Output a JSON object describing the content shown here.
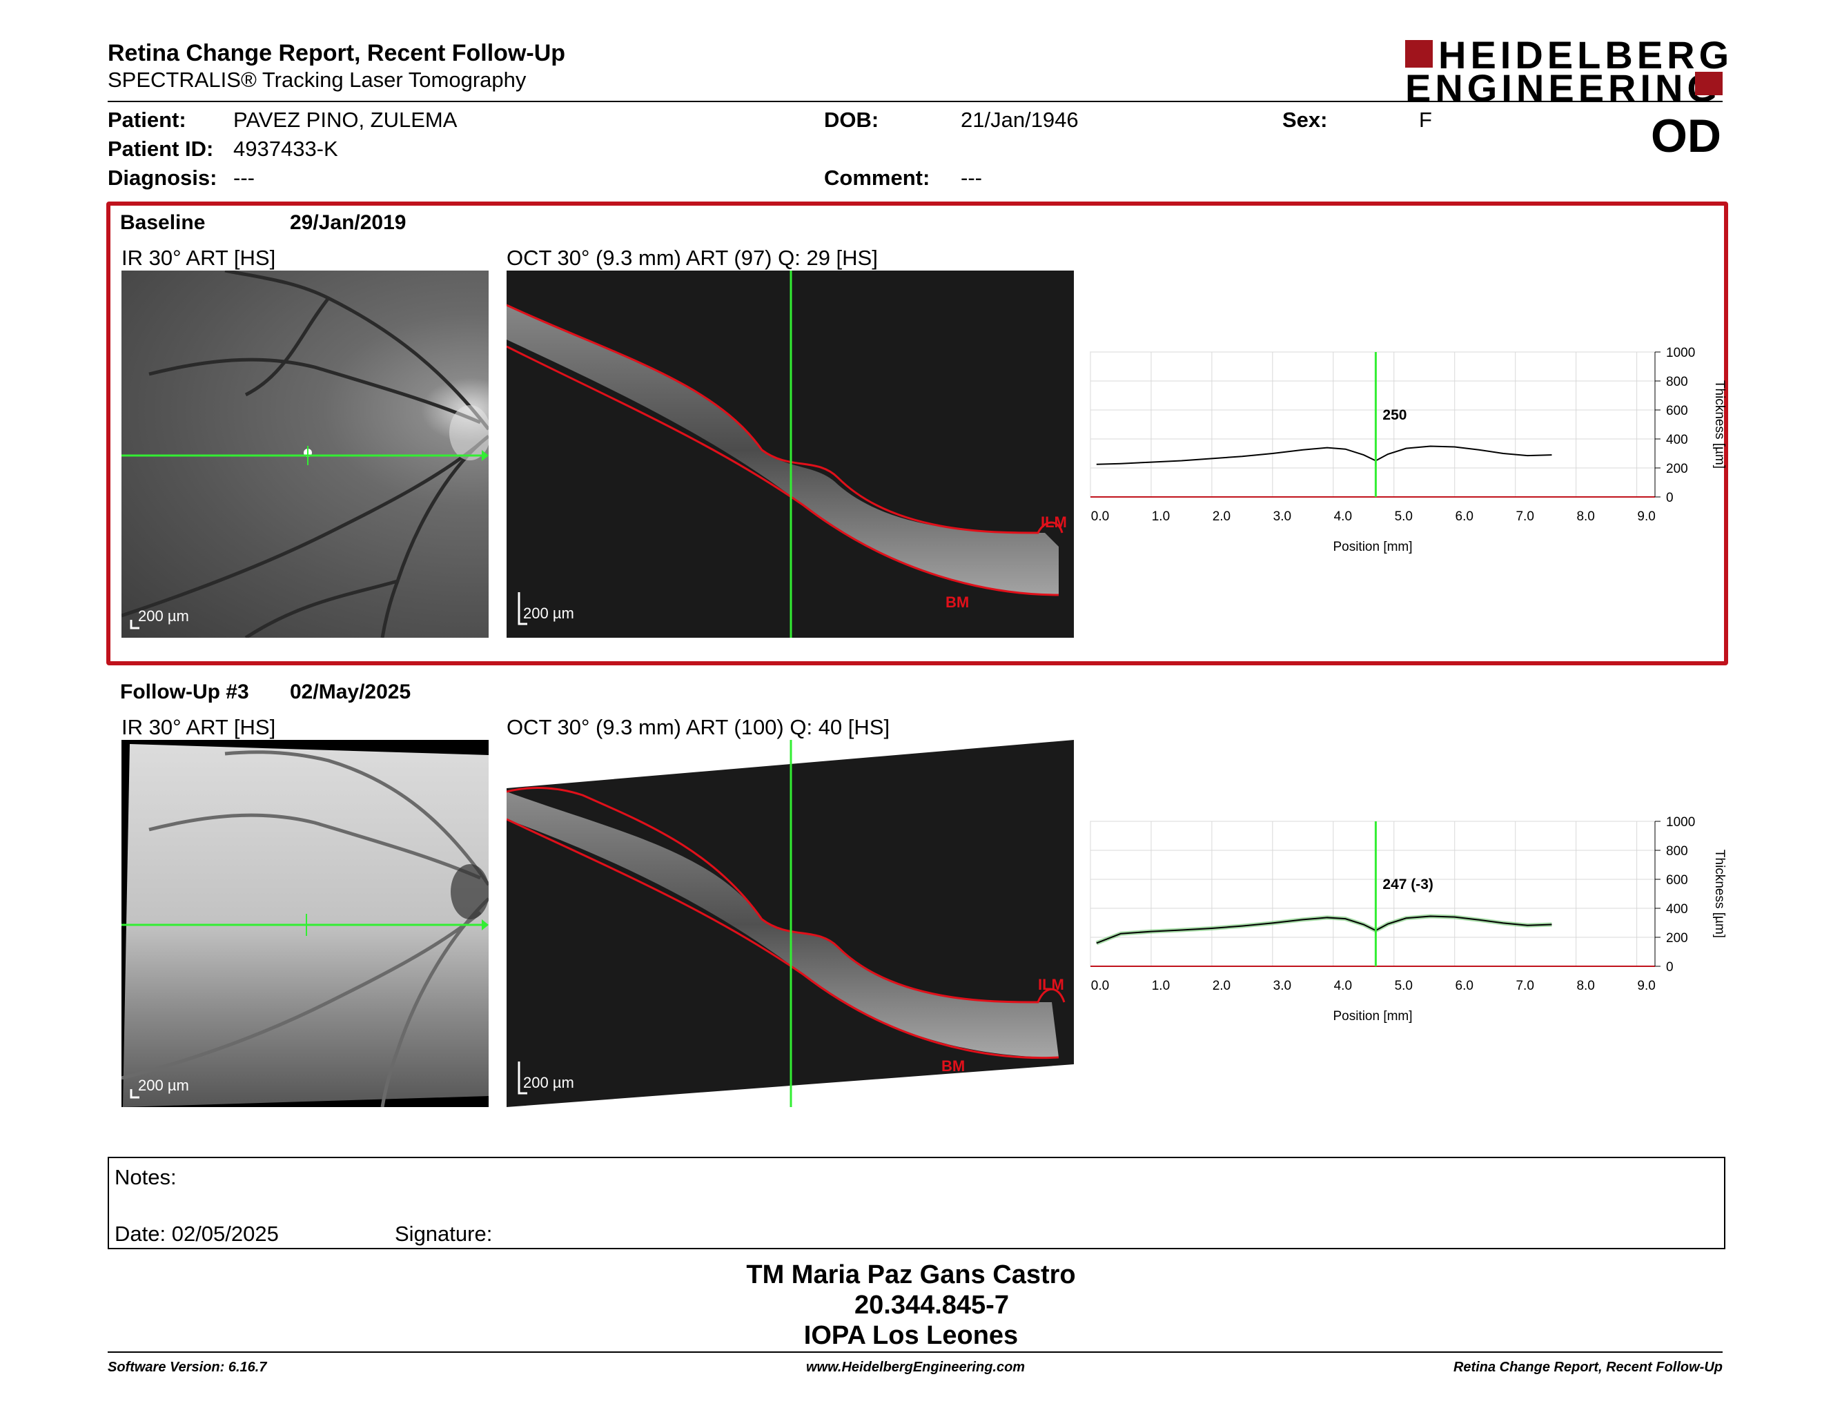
{
  "header": {
    "title": "Retina Change Report, Recent Follow-Up",
    "subtitle": "SPECTRALIS® Tracking Laser Tomography",
    "logo_line1": "HEIDELBERG",
    "logo_line2": "ENGINEERING"
  },
  "patient": {
    "patient_label": "Patient:",
    "patient_value": "PAVEZ PINO, ZULEMA",
    "id_label": "Patient ID:",
    "id_value": "4937433-K",
    "diagnosis_label": "Diagnosis:",
    "diagnosis_value": "---",
    "dob_label": "DOB:",
    "dob_value": "21/Jan/1946",
    "comment_label": "Comment:",
    "comment_value": "---",
    "sex_label": "Sex:",
    "sex_value": "F",
    "eye": "OD"
  },
  "baseline": {
    "label": "Baseline",
    "date": "29/Jan/2019",
    "ir_label": "IR 30° ART [HS]",
    "oct_label": "OCT 30° (9.3 mm) ART (97) Q: 29 [HS]",
    "scale": "200 µm",
    "ilm": "ILM",
    "bm": "BM"
  },
  "followup": {
    "label": "Follow-Up #3",
    "date": "02/May/2025",
    "ir_label": "IR 30° ART [HS]",
    "oct_label": "OCT 30° (9.3 mm) ART (100) Q: 40 [HS]",
    "scale": "200 µm",
    "ilm": "ILM",
    "bm": "BM"
  },
  "chart_data": [
    {
      "type": "line",
      "xlabel": "Position [mm]",
      "ylabel": "Thickness [µm]",
      "xlim": [
        0,
        9.3
      ],
      "ylim": [
        0,
        1000
      ],
      "xticks": [
        "0.0",
        "1.0",
        "2.0",
        "3.0",
        "4.0",
        "5.0",
        "6.0",
        "7.0",
        "8.0",
        "9.0"
      ],
      "yticks": [
        "0",
        "200",
        "400",
        "600",
        "800",
        "1000"
      ],
      "cursor_x": 4.7,
      "cursor_label": "250",
      "series": [
        {
          "x": [
            0.1,
            0.5,
            1.0,
            1.5,
            2.0,
            2.5,
            3.0,
            3.5,
            3.9,
            4.2,
            4.5,
            4.7,
            4.9,
            5.2,
            5.6,
            6.0,
            6.4,
            6.8,
            7.2,
            7.6
          ],
          "values": [
            225,
            230,
            240,
            250,
            265,
            280,
            300,
            325,
            340,
            330,
            290,
            250,
            295,
            335,
            350,
            345,
            325,
            300,
            285,
            290
          ]
        }
      ]
    },
    {
      "type": "line",
      "xlabel": "Position [mm]",
      "ylabel": "Thickness [µm]",
      "xlim": [
        0,
        9.3
      ],
      "ylim": [
        0,
        1000
      ],
      "xticks": [
        "0.0",
        "1.0",
        "2.0",
        "3.0",
        "4.0",
        "5.0",
        "6.0",
        "7.0",
        "8.0",
        "9.0"
      ],
      "yticks": [
        "0",
        "200",
        "400",
        "600",
        "800",
        "1000"
      ],
      "cursor_x": 4.7,
      "cursor_label": "247 (-3)",
      "series": [
        {
          "x": [
            0.1,
            0.5,
            1.0,
            1.5,
            2.0,
            2.5,
            3.0,
            3.5,
            3.9,
            4.2,
            4.5,
            4.7,
            4.9,
            5.2,
            5.6,
            6.0,
            6.4,
            6.8,
            7.2,
            7.6
          ],
          "values": [
            160,
            225,
            240,
            250,
            262,
            278,
            298,
            322,
            336,
            328,
            288,
            247,
            292,
            332,
            345,
            340,
            320,
            298,
            282,
            288
          ]
        }
      ]
    }
  ],
  "notes": {
    "notes_label": "Notes:",
    "date_label": "Date: 02/05/2025",
    "signature_label": "Signature:"
  },
  "signature": {
    "name": "TM Maria Paz Gans Castro",
    "rut": "20.344.845-7",
    "clinic": "IOPA Los Leones"
  },
  "footer": {
    "software": "Software Version: 6.16.7",
    "website": "www.HeidelbergEngineering.com",
    "report": "Retina Change Report, Recent Follow-Up"
  },
  "colors": {
    "accent": "#c0121c",
    "scan_line": "#33ee33",
    "ilm": "#e0101a"
  }
}
